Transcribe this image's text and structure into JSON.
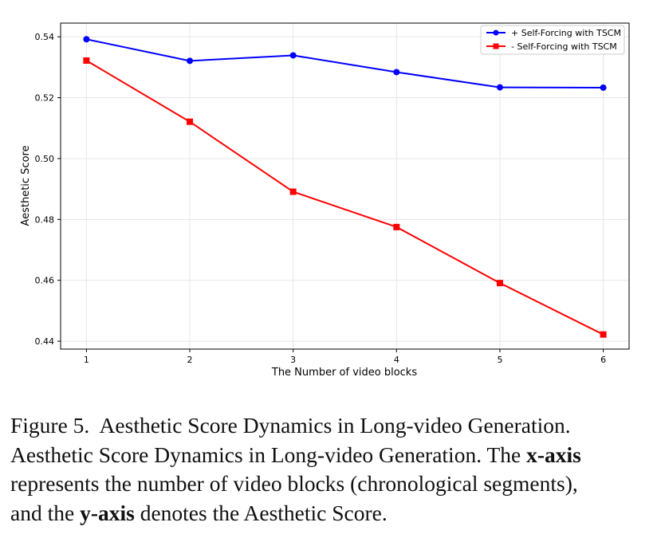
{
  "chart_data": {
    "type": "line",
    "title": "",
    "xlabel": "The Number of video blocks",
    "ylabel": "Aesthetic Score",
    "x": [
      1,
      2,
      3,
      4,
      5,
      6
    ],
    "xticks": [
      "1",
      "2",
      "3",
      "4",
      "5",
      "6"
    ],
    "yticks": [
      "0.44",
      "0.46",
      "0.48",
      "0.50",
      "0.52",
      "0.54"
    ],
    "ytick_values": [
      0.44,
      0.46,
      0.48,
      0.5,
      0.52,
      0.54
    ],
    "xlim": [
      0.75,
      6.25
    ],
    "ylim": [
      0.4374,
      0.5445
    ],
    "grid": true,
    "legend_position": "top-right",
    "series": [
      {
        "name": "+ Self-Forcing with TSCM",
        "color": "#0000ff",
        "marker": "circle",
        "values": [
          0.5392,
          0.5321,
          0.5339,
          0.5284,
          0.5234,
          0.5233
        ]
      },
      {
        "name": "- Self-Forcing with TSCM",
        "color": "#ff0000",
        "marker": "square",
        "values": [
          0.5322,
          0.5121,
          0.4891,
          0.4775,
          0.4591,
          0.4422
        ]
      }
    ]
  },
  "caption": {
    "label": "Figure 5.",
    "title": "Aesthetic Score Dynamics in Long-video Generation.",
    "line2_start": "Aesthetic Score Dynamics in Long-video Generation. The ",
    "x_axis_term": "x-axis",
    "line3": "represents the number of video blocks (chronological segments),",
    "line4_start": "and the ",
    "y_axis_term": "y-axis",
    "line4_end": " denotes the Aesthetic Score."
  }
}
